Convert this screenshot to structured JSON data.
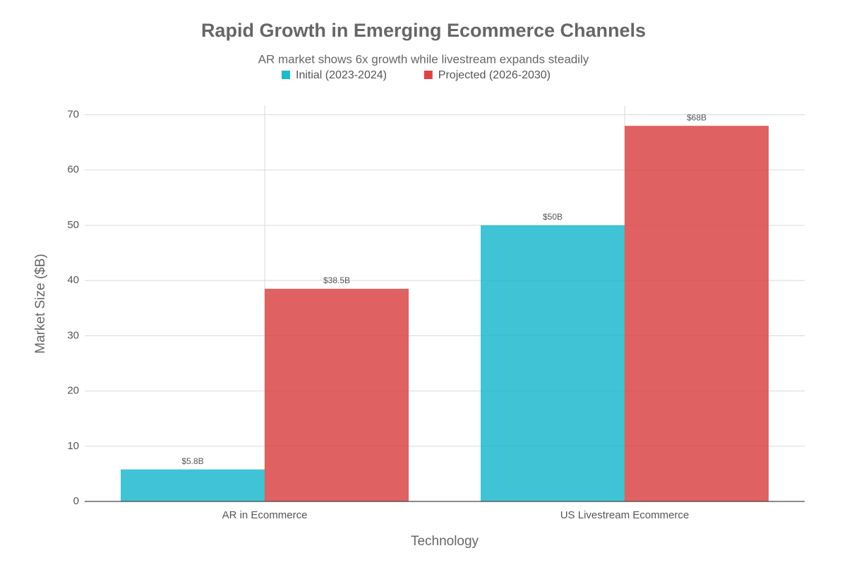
{
  "chart_data": {
    "type": "bar",
    "title": "Rapid Growth in Emerging Ecommerce Channels",
    "subtitle": "AR market shows 6x growth while livestream expands steadily",
    "x_label": "Technology",
    "y_label": "Market Size ($B)",
    "categories": [
      "AR in Ecommerce",
      "US Livestream Ecommerce"
    ],
    "series": [
      {
        "name": "Initial (2023-2024)",
        "color": "#1fb8cd",
        "values": [
          5.8,
          50
        ],
        "value_labels": [
          "$5.8B",
          "$50B"
        ]
      },
      {
        "name": "Projected (2026-2030)",
        "color": "#db4545",
        "values": [
          38.5,
          68
        ],
        "value_labels": [
          "$38.5B",
          "$68B"
        ]
      }
    ],
    "ylim": [
      0,
      71.6
    ],
    "yticks": [
      0,
      10,
      20,
      30,
      40,
      50,
      60,
      70
    ],
    "grid": true,
    "legend": "top"
  }
}
